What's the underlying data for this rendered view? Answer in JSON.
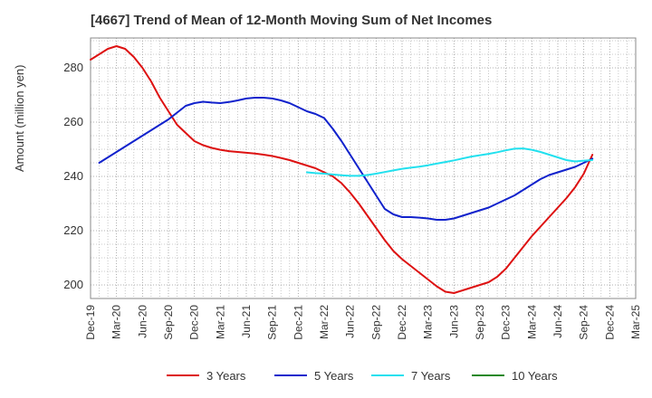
{
  "chart_data": {
    "type": "line",
    "title": "[4667]  Trend of Mean of 12-Month Moving Sum of Net Incomes",
    "ylabel": "Amount (million yen)",
    "xlabel": "",
    "ylim": [
      195,
      291
    ],
    "yticks": [
      200,
      220,
      240,
      260,
      280
    ],
    "xlim": [
      "2019-12",
      "2025-03"
    ],
    "xticks": [
      "Dec-19",
      "Mar-20",
      "Jun-20",
      "Sep-20",
      "Dec-20",
      "Mar-21",
      "Jun-21",
      "Sep-21",
      "Dec-21",
      "Mar-22",
      "Jun-22",
      "Sep-22",
      "Dec-22",
      "Mar-23",
      "Jun-23",
      "Sep-23",
      "Dec-23",
      "Mar-24",
      "Jun-24",
      "Sep-24",
      "Dec-24",
      "Mar-25"
    ],
    "grid": true,
    "legend_position": "bottom",
    "series": [
      {
        "name": "3 Years",
        "color": "#dd1111",
        "points": [
          [
            "2019-12",
            283
          ],
          [
            "2020-01",
            285
          ],
          [
            "2020-02",
            287
          ],
          [
            "2020-03",
            288
          ],
          [
            "2020-04",
            287
          ],
          [
            "2020-05",
            284
          ],
          [
            "2020-06",
            280
          ],
          [
            "2020-07",
            275
          ],
          [
            "2020-08",
            269
          ],
          [
            "2020-09",
            264
          ],
          [
            "2020-10",
            259
          ],
          [
            "2020-11",
            256
          ],
          [
            "2020-12",
            253
          ],
          [
            "2021-01",
            251.5
          ],
          [
            "2021-02",
            250.5
          ],
          [
            "2021-03",
            249.8
          ],
          [
            "2021-04",
            249.3
          ],
          [
            "2021-05",
            249
          ],
          [
            "2021-06",
            248.7
          ],
          [
            "2021-07",
            248.4
          ],
          [
            "2021-08",
            248
          ],
          [
            "2021-09",
            247.5
          ],
          [
            "2021-10",
            246.8
          ],
          [
            "2021-11",
            246
          ],
          [
            "2021-12",
            245
          ],
          [
            "2022-01",
            244
          ],
          [
            "2022-02",
            243
          ],
          [
            "2022-03",
            241.5
          ],
          [
            "2022-04",
            240
          ],
          [
            "2022-05",
            237.5
          ],
          [
            "2022-06",
            234
          ],
          [
            "2022-07",
            230
          ],
          [
            "2022-08",
            225.5
          ],
          [
            "2022-09",
            221
          ],
          [
            "2022-10",
            216.5
          ],
          [
            "2022-11",
            212.5
          ],
          [
            "2022-12",
            209.5
          ],
          [
            "2023-01",
            207
          ],
          [
            "2023-02",
            204.5
          ],
          [
            "2023-03",
            202
          ],
          [
            "2023-04",
            199.5
          ],
          [
            "2023-05",
            197.5
          ],
          [
            "2023-06",
            197
          ],
          [
            "2023-07",
            198
          ],
          [
            "2023-08",
            199
          ],
          [
            "2023-09",
            200
          ],
          [
            "2023-10",
            201
          ],
          [
            "2023-11",
            203
          ],
          [
            "2023-12",
            206
          ],
          [
            "2024-01",
            210
          ],
          [
            "2024-02",
            214
          ],
          [
            "2024-03",
            218
          ],
          [
            "2024-04",
            221.5
          ],
          [
            "2024-05",
            225
          ],
          [
            "2024-06",
            228.5
          ],
          [
            "2024-07",
            232
          ],
          [
            "2024-08",
            236
          ],
          [
            "2024-09",
            241
          ],
          [
            "2024-10",
            248
          ]
        ]
      },
      {
        "name": "5 Years",
        "color": "#1122cc",
        "points": [
          [
            "2020-01",
            245
          ],
          [
            "2020-02",
            247
          ],
          [
            "2020-03",
            249
          ],
          [
            "2020-04",
            251
          ],
          [
            "2020-05",
            253
          ],
          [
            "2020-06",
            255
          ],
          [
            "2020-07",
            257
          ],
          [
            "2020-08",
            259
          ],
          [
            "2020-09",
            261
          ],
          [
            "2020-10",
            263.5
          ],
          [
            "2020-11",
            266
          ],
          [
            "2020-12",
            267
          ],
          [
            "2021-01",
            267.5
          ],
          [
            "2021-02",
            267.2
          ],
          [
            "2021-03",
            267
          ],
          [
            "2021-04",
            267.4
          ],
          [
            "2021-05",
            268
          ],
          [
            "2021-06",
            268.7
          ],
          [
            "2021-07",
            269
          ],
          [
            "2021-08",
            269
          ],
          [
            "2021-09",
            268.7
          ],
          [
            "2021-10",
            268
          ],
          [
            "2021-11",
            267
          ],
          [
            "2021-12",
            265.5
          ],
          [
            "2022-01",
            264
          ],
          [
            "2022-02",
            263
          ],
          [
            "2022-03",
            261.5
          ],
          [
            "2022-04",
            257.5
          ],
          [
            "2022-05",
            253
          ],
          [
            "2022-06",
            248
          ],
          [
            "2022-07",
            243
          ],
          [
            "2022-08",
            238
          ],
          [
            "2022-09",
            233
          ],
          [
            "2022-10",
            228
          ],
          [
            "2022-11",
            226
          ],
          [
            "2022-12",
            225
          ],
          [
            "2023-01",
            225
          ],
          [
            "2023-02",
            224.8
          ],
          [
            "2023-03",
            224.5
          ],
          [
            "2023-04",
            224
          ],
          [
            "2023-05",
            224
          ],
          [
            "2023-06",
            224.5
          ],
          [
            "2023-07",
            225.5
          ],
          [
            "2023-08",
            226.5
          ],
          [
            "2023-09",
            227.5
          ],
          [
            "2023-10",
            228.5
          ],
          [
            "2023-11",
            230
          ],
          [
            "2023-12",
            231.5
          ],
          [
            "2024-01",
            233
          ],
          [
            "2024-02",
            235
          ],
          [
            "2024-03",
            237
          ],
          [
            "2024-04",
            239
          ],
          [
            "2024-05",
            240.5
          ],
          [
            "2024-06",
            241.5
          ],
          [
            "2024-07",
            242.5
          ],
          [
            "2024-08",
            243.5
          ],
          [
            "2024-09",
            245
          ],
          [
            "2024-10",
            246.5
          ]
        ]
      },
      {
        "name": "7 Years",
        "color": "#22e0ee",
        "points": [
          [
            "2022-01",
            241.5
          ],
          [
            "2022-02",
            241.2
          ],
          [
            "2022-03",
            241
          ],
          [
            "2022-04",
            240.7
          ],
          [
            "2022-05",
            240.4
          ],
          [
            "2022-06",
            240.2
          ],
          [
            "2022-07",
            240.2
          ],
          [
            "2022-08",
            240.5
          ],
          [
            "2022-09",
            241
          ],
          [
            "2022-10",
            241.6
          ],
          [
            "2022-11",
            242.2
          ],
          [
            "2022-12",
            242.8
          ],
          [
            "2023-01",
            243.2
          ],
          [
            "2023-02",
            243.6
          ],
          [
            "2023-03",
            244.1
          ],
          [
            "2023-04",
            244.7
          ],
          [
            "2023-05",
            245.3
          ],
          [
            "2023-06",
            245.9
          ],
          [
            "2023-07",
            246.6
          ],
          [
            "2023-08",
            247.3
          ],
          [
            "2023-09",
            247.8
          ],
          [
            "2023-10",
            248.3
          ],
          [
            "2023-11",
            248.9
          ],
          [
            "2023-12",
            249.6
          ],
          [
            "2024-01",
            250.2
          ],
          [
            "2024-02",
            250.3
          ],
          [
            "2024-03",
            249.8
          ],
          [
            "2024-04",
            249
          ],
          [
            "2024-05",
            248
          ],
          [
            "2024-06",
            247
          ],
          [
            "2024-07",
            246
          ],
          [
            "2024-08",
            245.5
          ],
          [
            "2024-09",
            245.8
          ],
          [
            "2024-10",
            246
          ]
        ]
      },
      {
        "name": "10 Years",
        "color": "#228822",
        "points": []
      }
    ]
  }
}
